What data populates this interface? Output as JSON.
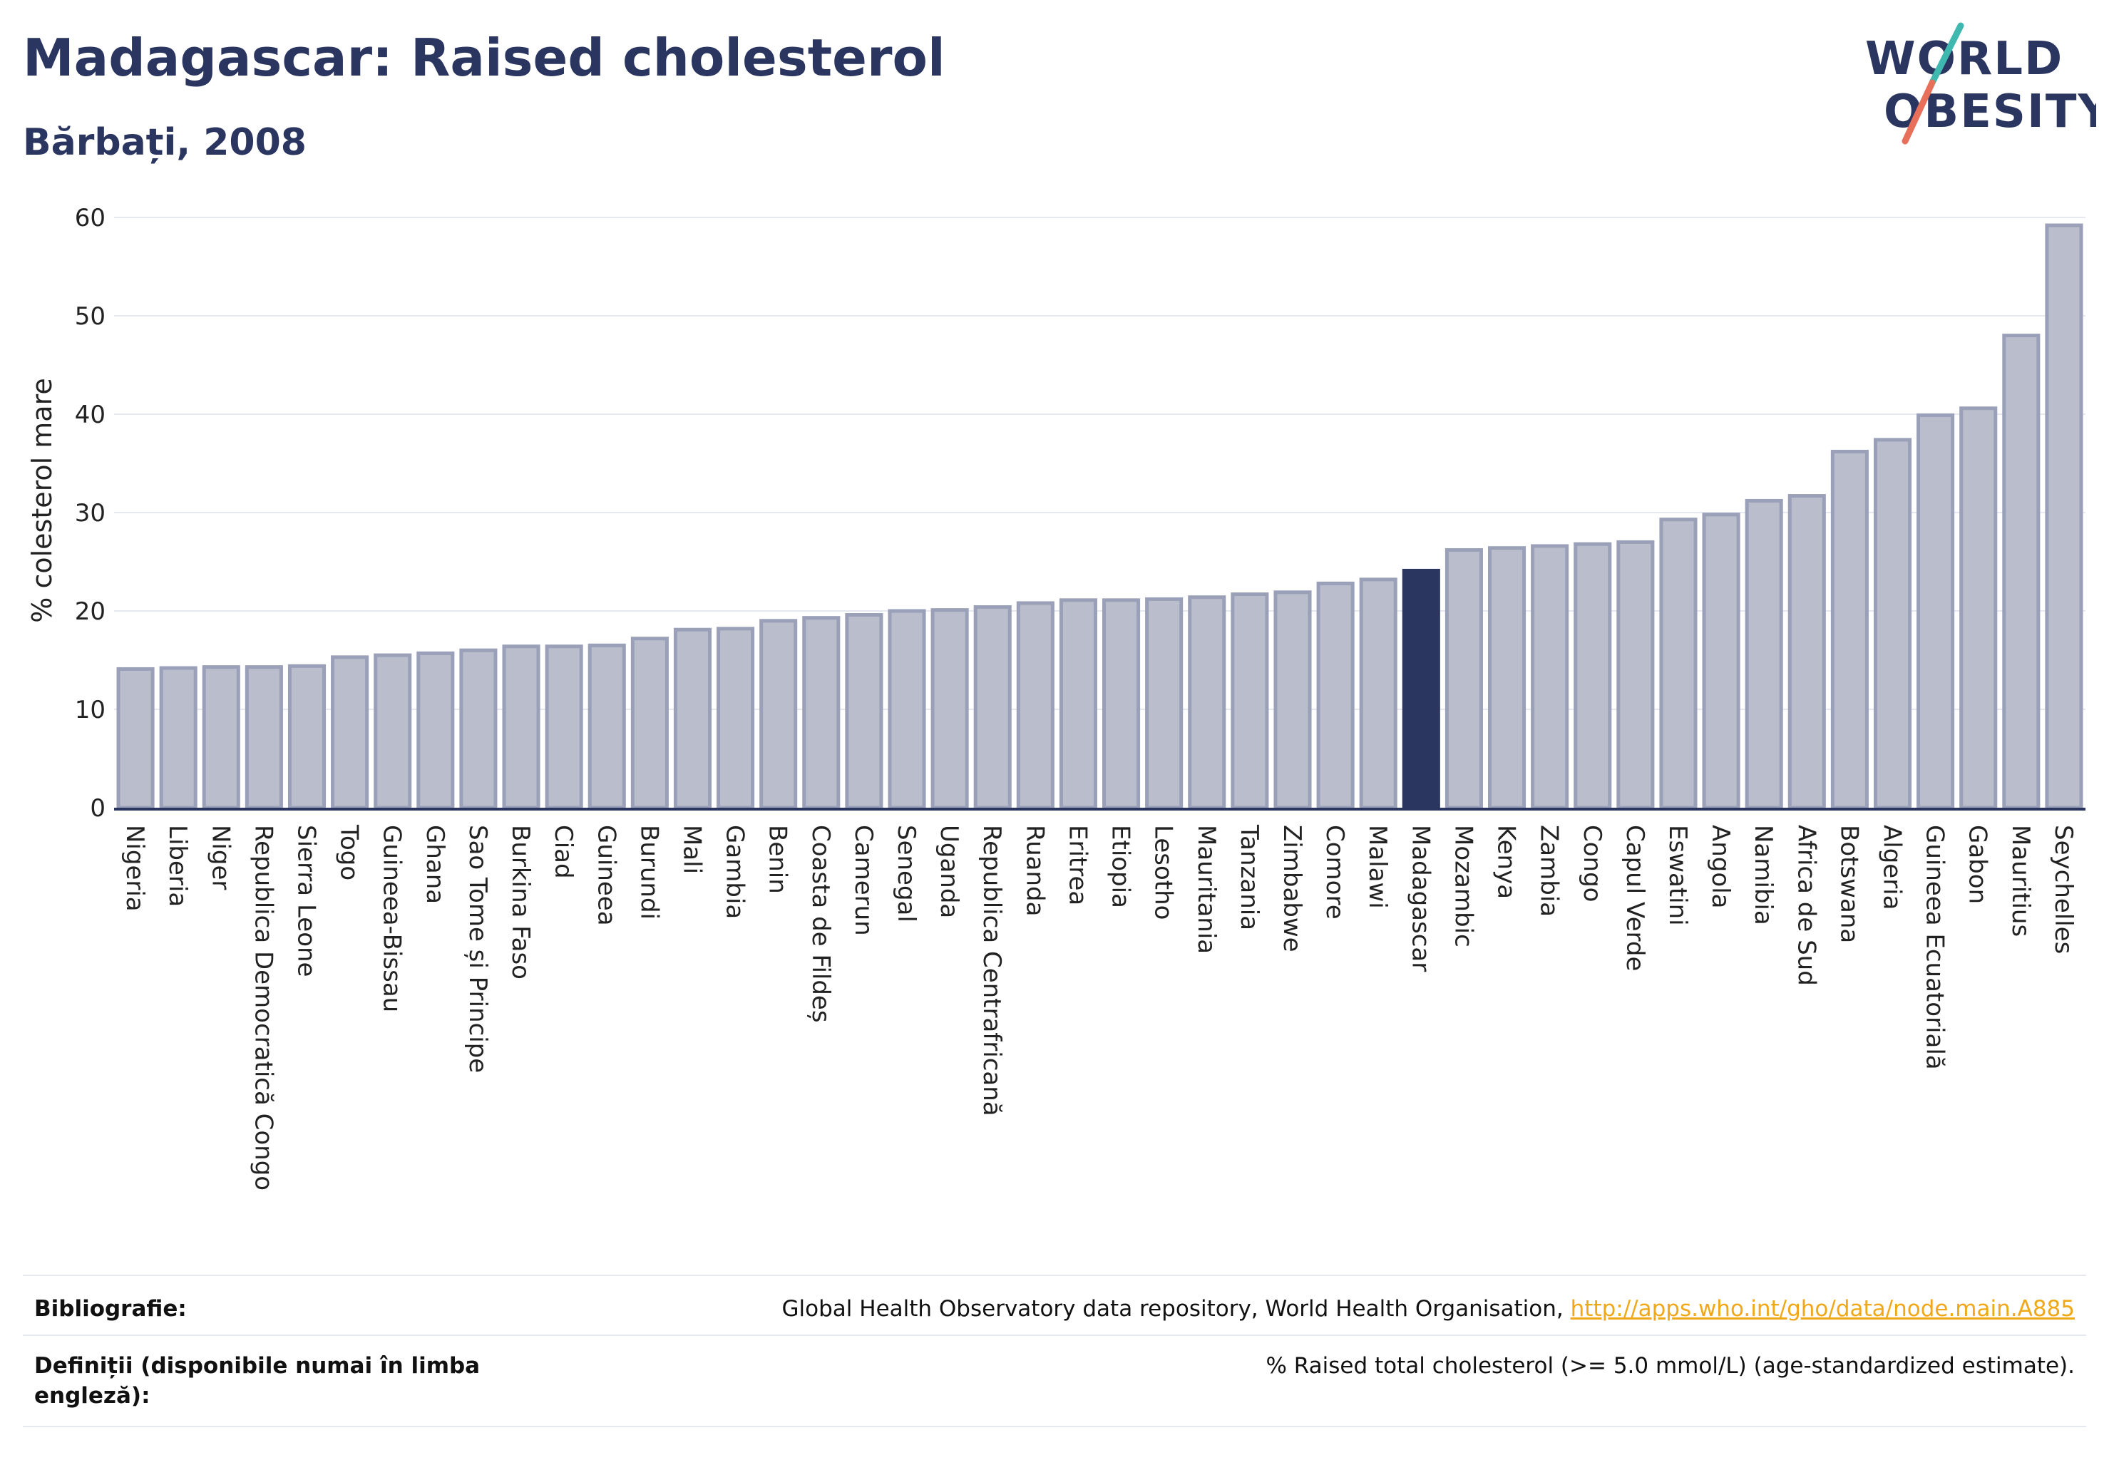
{
  "header": {
    "title": "Madagascar: Raised cholesterol",
    "subtitle": "Bărbați, 2008"
  },
  "logo": {
    "line1": "WORLD",
    "line2": "OBESITY"
  },
  "colors": {
    "bar": "#b9bdcc",
    "bar_stroke": "#9aa0b8",
    "highlight": "#2a3560",
    "grid": "#e6e8f0",
    "accent_teal": "#3fb8b0",
    "accent_coral": "#e8705a"
  },
  "chart_data": {
    "type": "bar",
    "ylabel": "% colesterol mare",
    "ylim": [
      0,
      60
    ],
    "yticks": [
      0,
      10,
      20,
      30,
      40,
      50,
      60
    ],
    "grid": true,
    "highlight": "Madagascar",
    "categories": [
      "Nigeria",
      "Liberia",
      "Niger",
      "Republica Democratică Congo",
      "Sierra Leone",
      "Togo",
      "Guineea-Bissau",
      "Ghana",
      "Sao Tome și Principe",
      "Burkina Faso",
      "Ciad",
      "Guineea",
      "Burundi",
      "Mali",
      "Gambia",
      "Benin",
      "Coasta de Fildeș",
      "Camerun",
      "Senegal",
      "Uganda",
      "Republica Centrafricană",
      "Ruanda",
      "Eritrea",
      "Etiopia",
      "Lesotho",
      "Mauritania",
      "Tanzania",
      "Zimbabwe",
      "Comore",
      "Malawi",
      "Madagascar",
      "Mozambic",
      "Kenya",
      "Zambia",
      "Congo",
      "Capul Verde",
      "Eswatini",
      "Angola",
      "Namibia",
      "Africa de Sud",
      "Botswana",
      "Algeria",
      "Guineea Ecuatorială",
      "Gabon",
      "Mauritius",
      "Seychelles"
    ],
    "values": [
      14.1,
      14.2,
      14.3,
      14.3,
      14.4,
      15.3,
      15.5,
      15.7,
      16.0,
      16.4,
      16.4,
      16.5,
      17.2,
      18.1,
      18.2,
      19.0,
      19.3,
      19.6,
      20.0,
      20.1,
      20.4,
      20.8,
      21.1,
      21.1,
      21.2,
      21.4,
      21.7,
      21.9,
      22.8,
      23.2,
      24.1,
      26.2,
      26.4,
      26.6,
      26.8,
      27.0,
      29.3,
      29.8,
      31.2,
      31.7,
      36.2,
      37.4,
      39.9,
      40.6,
      48.0,
      59.2
    ]
  },
  "footer": {
    "bibliography_label": "Bibliografie:",
    "bibliography_text": "Global Health Observatory data repository, World Health Organisation, ",
    "bibliography_link": "http://apps.who.int/gho/data/node.main.A885",
    "definitions_label": "Definiții (disponibile numai în limba engleză):",
    "definitions_text": "% Raised total cholesterol (>= 5.0 mmol/L) (age-standardized estimate)."
  }
}
